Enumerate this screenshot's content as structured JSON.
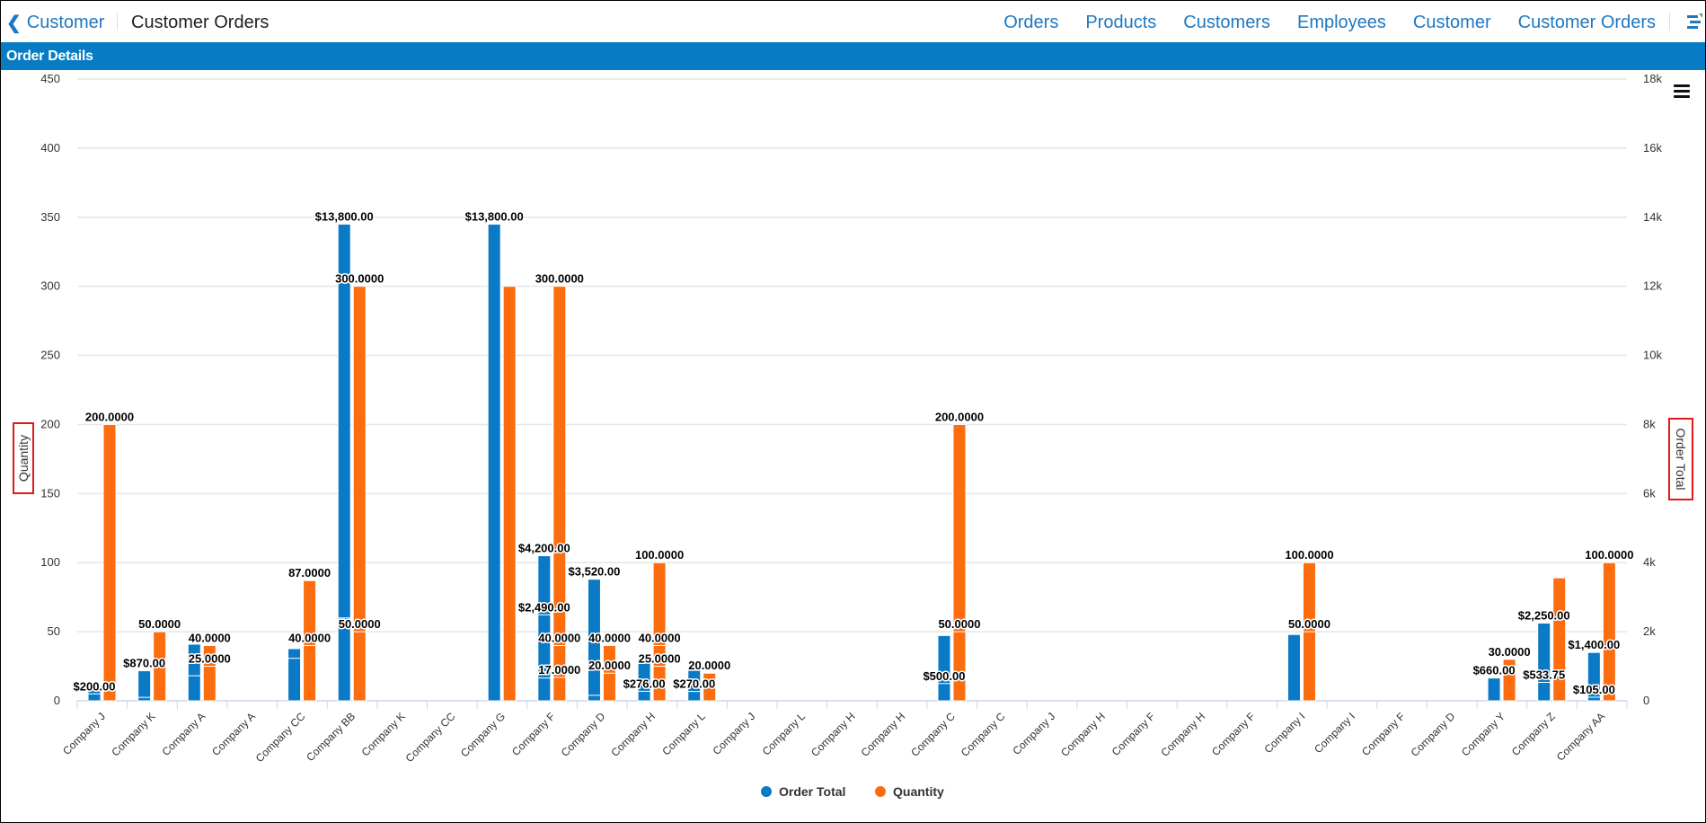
{
  "header": {
    "back_label": "Customer",
    "back_icon": "chevron-left-icon",
    "title": "Customer Orders",
    "nav": [
      "Orders",
      "Products",
      "Customers",
      "Employees",
      "Customer",
      "Customer Orders"
    ],
    "menu_icon": "app-menu-icon"
  },
  "panel": {
    "title": "Order Details",
    "menu_icon": "hamburger-icon"
  },
  "colors": {
    "order_total": "#0a7ac6",
    "quantity": "#fc6d10",
    "band": "#077cc4",
    "link": "#1f78c1",
    "highlight_box": "#e0191b"
  },
  "chart_data": {
    "type": "bar",
    "grid": true,
    "legend_placement": "bottom",
    "left_axis": {
      "title": "Quantity",
      "range": [
        0,
        450
      ],
      "ticks": [
        "0",
        "50",
        "100",
        "150",
        "200",
        "250",
        "300",
        "350",
        "400",
        "450"
      ]
    },
    "right_axis": {
      "title": "Order Total",
      "range": [
        0,
        18000
      ],
      "ticks": [
        "0",
        "2k",
        "4k",
        "6k",
        "8k",
        "10k",
        "12k",
        "14k",
        "16k",
        "18k"
      ]
    },
    "legend": [
      {
        "name": "Order Total"
      },
      {
        "name": "Quantity"
      }
    ],
    "categories": [
      {
        "name": "Company J",
        "order_total": [
          {
            "value": 470
          },
          {
            "value": 200,
            "label": "$200.00"
          }
        ],
        "quantity": [
          {
            "value": 200,
            "label": "200.0000"
          }
        ]
      },
      {
        "name": "Company K",
        "order_total": [
          {
            "value": 870,
            "label": "$870.00"
          },
          {
            "value": 100
          }
        ],
        "quantity": [
          {
            "value": 50,
            "label": "50.0000"
          }
        ]
      },
      {
        "name": "Company A",
        "order_total": [
          {
            "value": 1640
          },
          {
            "value": 725
          }
        ],
        "quantity": [
          {
            "value": 40,
            "label": "40.0000"
          },
          {
            "value": 25,
            "label": "25.0000"
          }
        ]
      },
      {
        "name": "Company A",
        "order_total": [],
        "quantity": []
      },
      {
        "name": "Company CC",
        "order_total": [
          {
            "value": 1510
          },
          {
            "value": 1230
          }
        ],
        "quantity": [
          {
            "value": 87,
            "label": "87.0000"
          },
          {
            "value": 40,
            "label": "40.0000"
          }
        ]
      },
      {
        "name": "Company BB",
        "order_total": [
          {
            "value": 13800,
            "label": "$13,800.00"
          },
          {
            "value": 2400
          }
        ],
        "quantity": [
          {
            "value": 300,
            "label": "300.0000"
          },
          {
            "value": 50,
            "label": "50.0000"
          }
        ]
      },
      {
        "name": "Company K",
        "order_total": [],
        "quantity": []
      },
      {
        "name": "Company CC",
        "order_total": [],
        "quantity": []
      },
      {
        "name": "Company G",
        "order_total": [
          {
            "value": 13800,
            "label": "$13,800.00"
          }
        ],
        "quantity": [
          {
            "value": 300
          }
        ]
      },
      {
        "name": "Company F",
        "order_total": [
          {
            "value": 4200,
            "label": "$4,200.00"
          },
          {
            "value": 2490,
            "label": "$2,490.00"
          },
          {
            "value": 660
          }
        ],
        "quantity": [
          {
            "value": 300,
            "label": "300.0000"
          },
          {
            "value": 40,
            "label": "40.0000"
          },
          {
            "value": 17,
            "label": "17.0000"
          }
        ]
      },
      {
        "name": "Company D",
        "order_total": [
          {
            "value": 3520,
            "label": "$3,520.00"
          },
          {
            "value": 160
          }
        ],
        "quantity": [
          {
            "value": 40,
            "label": "40.0000"
          },
          {
            "value": 20,
            "label": "20.0000"
          }
        ]
      },
      {
        "name": "Company H",
        "order_total": [
          {
            "value": 1230
          },
          {
            "value": 276,
            "label": "$276.00"
          }
        ],
        "quantity": [
          {
            "value": 100,
            "label": "100.0000"
          },
          {
            "value": 40,
            "label": "40.0000"
          },
          {
            "value": 25,
            "label": "25.0000"
          }
        ]
      },
      {
        "name": "Company L",
        "order_total": [
          {
            "value": 880
          },
          {
            "value": 270,
            "label": "$270.00"
          }
        ],
        "quantity": [
          {
            "value": 20,
            "label": "20.0000"
          }
        ]
      },
      {
        "name": "Company J",
        "order_total": [],
        "quantity": []
      },
      {
        "name": "Company L",
        "order_total": [],
        "quantity": []
      },
      {
        "name": "Company H",
        "order_total": [],
        "quantity": []
      },
      {
        "name": "Company H",
        "order_total": [],
        "quantity": []
      },
      {
        "name": "Company C",
        "order_total": [
          {
            "value": 1890
          },
          {
            "value": 500,
            "label": "$500.00"
          }
        ],
        "quantity": [
          {
            "value": 200,
            "label": "200.0000"
          },
          {
            "value": 50,
            "label": "50.0000"
          }
        ]
      },
      {
        "name": "Company C",
        "order_total": [],
        "quantity": []
      },
      {
        "name": "Company J",
        "order_total": [],
        "quantity": []
      },
      {
        "name": "Company H",
        "order_total": [],
        "quantity": []
      },
      {
        "name": "Company F",
        "order_total": [],
        "quantity": []
      },
      {
        "name": "Company H",
        "order_total": [],
        "quantity": []
      },
      {
        "name": "Company F",
        "order_total": [],
        "quantity": []
      },
      {
        "name": "Company I",
        "order_total": [
          {
            "value": 1920
          }
        ],
        "quantity": [
          {
            "value": 100,
            "label": "100.0000"
          },
          {
            "value": 50,
            "label": "50.0000"
          }
        ]
      },
      {
        "name": "Company I",
        "order_total": [],
        "quantity": []
      },
      {
        "name": "Company F",
        "order_total": [],
        "quantity": []
      },
      {
        "name": "Company D",
        "order_total": [],
        "quantity": []
      },
      {
        "name": "Company Y",
        "order_total": [
          {
            "value": 660,
            "label": "$660.00"
          }
        ],
        "quantity": [
          {
            "value": 30,
            "label": "30.0000"
          }
        ]
      },
      {
        "name": "Company Z",
        "order_total": [
          {
            "value": 2250,
            "label": "$2,250.00"
          },
          {
            "value": 533.75,
            "label": "$533.75"
          }
        ],
        "quantity": [
          {
            "value": 89
          }
        ]
      },
      {
        "name": "Company AA",
        "order_total": [
          {
            "value": 1400,
            "label": "$1,400.00"
          },
          {
            "value": 105,
            "label": "$105.00"
          }
        ],
        "quantity": [
          {
            "value": 100,
            "label": "100.0000"
          }
        ]
      }
    ]
  }
}
